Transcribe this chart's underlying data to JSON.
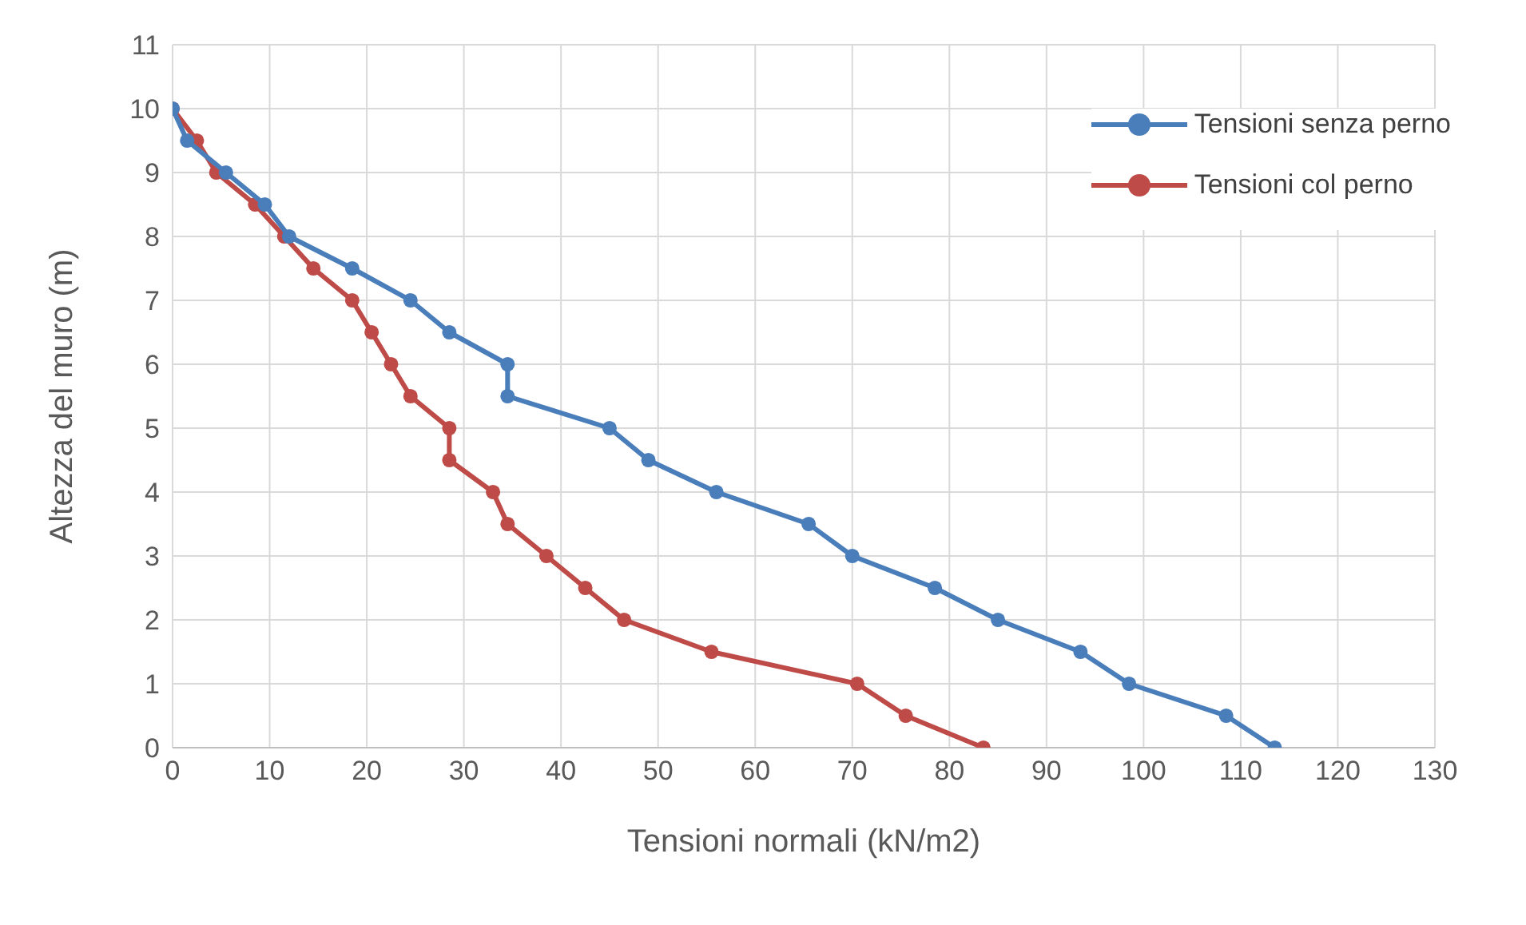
{
  "chart_data": {
    "type": "line",
    "xlabel": "Tensioni normali (kN/m2)",
    "ylabel": "Altezza del muro (m)",
    "xlim": [
      0,
      130
    ],
    "xticks": [
      0,
      10,
      20,
      30,
      40,
      50,
      60,
      70,
      80,
      90,
      100,
      110,
      120,
      130
    ],
    "ylim": [
      0,
      11
    ],
    "yticks": [
      0,
      1,
      2,
      3,
      4,
      5,
      6,
      7,
      8,
      9,
      10,
      11
    ],
    "grid": true,
    "legend": "top right",
    "marker": "circle",
    "series": [
      {
        "name": "Tensioni senza perno",
        "color": "#4a7ebb",
        "x": [
          0,
          1.5,
          5.5,
          9.5,
          12,
          18.5,
          24.5,
          28.5,
          34.5,
          34.5,
          45,
          49,
          56,
          65.5,
          70,
          78.5,
          85,
          93.5,
          98.5,
          108.5,
          113.5
        ],
        "values": [
          10,
          9.5,
          9,
          8.5,
          8,
          7.5,
          7,
          6.5,
          6,
          5.5,
          5,
          4.5,
          4,
          3.5,
          3,
          2.5,
          2,
          1.5,
          1,
          0.5,
          0
        ]
      },
      {
        "name": "Tensioni col perno",
        "color": "#be4b48",
        "x": [
          0,
          2.5,
          4.5,
          8.5,
          11.5,
          14.5,
          18.5,
          20.5,
          22.5,
          24.5,
          28.5,
          28.5,
          33,
          34.5,
          38.5,
          42.5,
          46.5,
          55.5,
          70.5,
          75.5,
          83.5
        ],
        "values": [
          10,
          9.5,
          9,
          8.5,
          8,
          7.5,
          7,
          6.5,
          6,
          5.5,
          5,
          4.5,
          4,
          3.5,
          3,
          2.5,
          2,
          1.5,
          1,
          0.5,
          0
        ]
      }
    ]
  }
}
